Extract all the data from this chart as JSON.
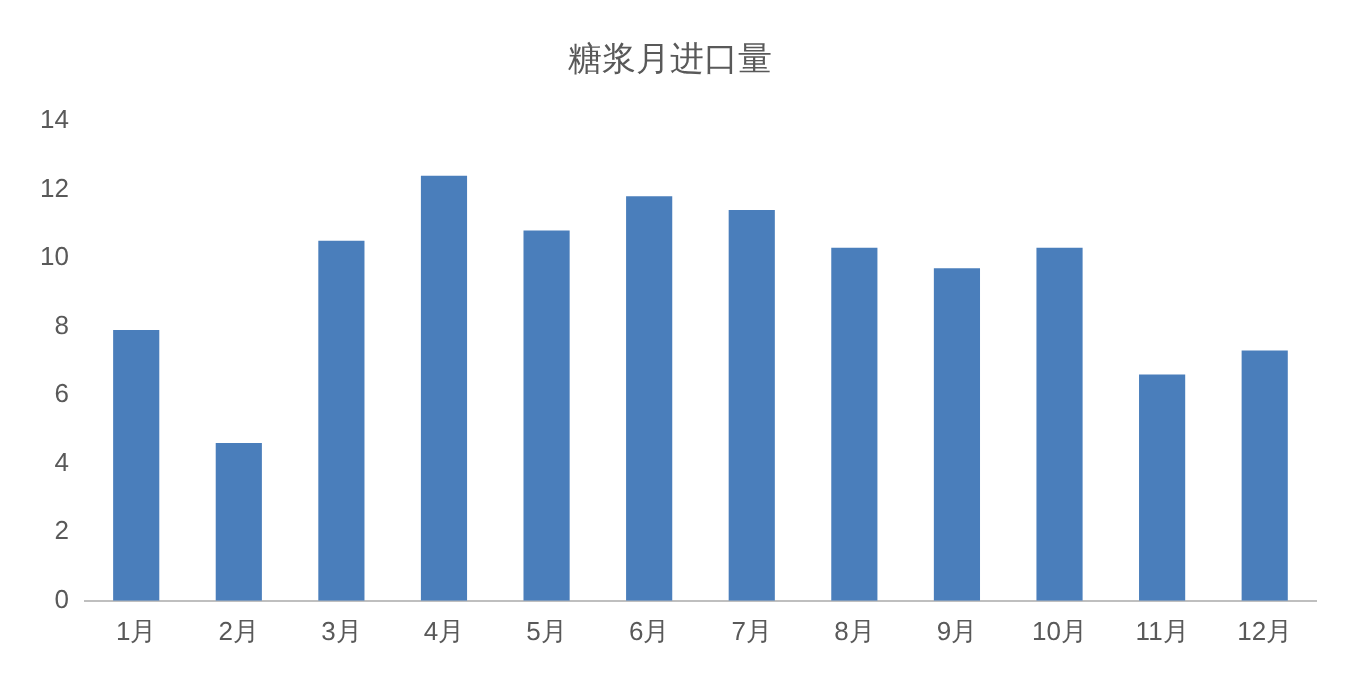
{
  "chart_data": {
    "type": "bar",
    "title": "糖浆月进口量",
    "categories": [
      "1月",
      "2月",
      "3月",
      "4月",
      "5月",
      "6月",
      "7月",
      "8月",
      "9月",
      "10月",
      "11月",
      "12月"
    ],
    "values": [
      7.9,
      4.6,
      10.5,
      12.4,
      10.8,
      11.8,
      11.4,
      10.3,
      9.7,
      10.3,
      6.6,
      7.3
    ],
    "color": "#4a7ebb",
    "ylim": [
      0,
      14
    ],
    "yticks": [
      0,
      2,
      4,
      6,
      8,
      10,
      12,
      14
    ],
    "grid": false,
    "legend": false
  }
}
